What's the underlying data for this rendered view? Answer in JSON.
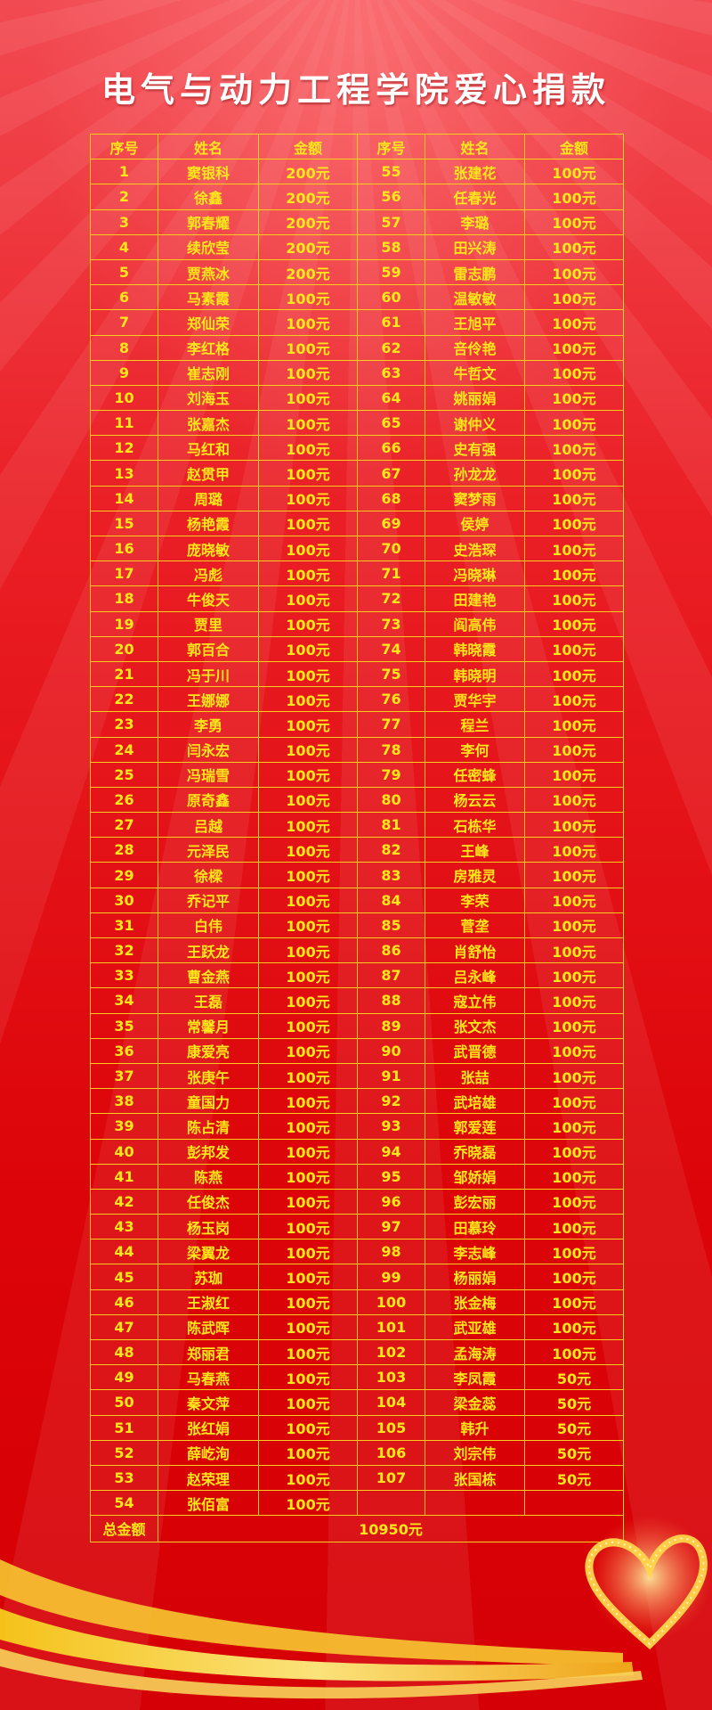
{
  "title": "电气与动力工程学院爱心捐款",
  "headers": [
    "序号",
    "姓名",
    "金额",
    "序号",
    "姓名",
    "金额"
  ],
  "left": [
    [
      "1",
      "窦银科",
      "200元"
    ],
    [
      "2",
      "徐鑫",
      "200元"
    ],
    [
      "3",
      "郭春耀",
      "200元"
    ],
    [
      "4",
      "续欣莹",
      "200元"
    ],
    [
      "5",
      "贾燕冰",
      "200元"
    ],
    [
      "6",
      "马素霞",
      "100元"
    ],
    [
      "7",
      "郑仙荣",
      "100元"
    ],
    [
      "8",
      "李红格",
      "100元"
    ],
    [
      "9",
      "崔志刚",
      "100元"
    ],
    [
      "10",
      "刘海玉",
      "100元"
    ],
    [
      "11",
      "张嘉杰",
      "100元"
    ],
    [
      "12",
      "马红和",
      "100元"
    ],
    [
      "13",
      "赵贯甲",
      "100元"
    ],
    [
      "14",
      "周璐",
      "100元"
    ],
    [
      "15",
      "杨艳霞",
      "100元"
    ],
    [
      "16",
      "庞晓敏",
      "100元"
    ],
    [
      "17",
      "冯彪",
      "100元"
    ],
    [
      "18",
      "牛俊天",
      "100元"
    ],
    [
      "19",
      "贾里",
      "100元"
    ],
    [
      "20",
      "郭百合",
      "100元"
    ],
    [
      "21",
      "冯于川",
      "100元"
    ],
    [
      "22",
      "王娜娜",
      "100元"
    ],
    [
      "23",
      "李勇",
      "100元"
    ],
    [
      "24",
      "闫永宏",
      "100元"
    ],
    [
      "25",
      "冯瑞雪",
      "100元"
    ],
    [
      "26",
      "原奇鑫",
      "100元"
    ],
    [
      "27",
      "吕越",
      "100元"
    ],
    [
      "28",
      "元泽民",
      "100元"
    ],
    [
      "29",
      "徐樑",
      "100元"
    ],
    [
      "30",
      "乔记平",
      "100元"
    ],
    [
      "31",
      "白伟",
      "100元"
    ],
    [
      "32",
      "王跃龙",
      "100元"
    ],
    [
      "33",
      "曹金燕",
      "100元"
    ],
    [
      "34",
      "王磊",
      "100元"
    ],
    [
      "35",
      "常馨月",
      "100元"
    ],
    [
      "36",
      "康爱亮",
      "100元"
    ],
    [
      "37",
      "张庚午",
      "100元"
    ],
    [
      "38",
      "童国力",
      "100元"
    ],
    [
      "39",
      "陈占清",
      "100元"
    ],
    [
      "40",
      "彭邦发",
      "100元"
    ],
    [
      "41",
      "陈燕",
      "100元"
    ],
    [
      "42",
      "任俊杰",
      "100元"
    ],
    [
      "43",
      "杨玉岗",
      "100元"
    ],
    [
      "44",
      "梁翼龙",
      "100元"
    ],
    [
      "45",
      "苏珈",
      "100元"
    ],
    [
      "46",
      "王淑红",
      "100元"
    ],
    [
      "47",
      "陈武晖",
      "100元"
    ],
    [
      "48",
      "郑丽君",
      "100元"
    ],
    [
      "49",
      "马春燕",
      "100元"
    ],
    [
      "50",
      "秦文萍",
      "100元"
    ],
    [
      "51",
      "张红娟",
      "100元"
    ],
    [
      "52",
      "薛屹洵",
      "100元"
    ],
    [
      "53",
      "赵荣理",
      "100元"
    ],
    [
      "54",
      "张佰富",
      "100元"
    ]
  ],
  "right": [
    [
      "55",
      "张建花",
      "100元"
    ],
    [
      "56",
      "任春光",
      "100元"
    ],
    [
      "57",
      "李璐",
      "100元"
    ],
    [
      "58",
      "田兴涛",
      "100元"
    ],
    [
      "59",
      "雷志鹏",
      "100元"
    ],
    [
      "60",
      "温敏敏",
      "100元"
    ],
    [
      "61",
      "王旭平",
      "100元"
    ],
    [
      "62",
      "咅伶艳",
      "100元"
    ],
    [
      "63",
      "牛哲文",
      "100元"
    ],
    [
      "64",
      "姚丽娟",
      "100元"
    ],
    [
      "65",
      "谢仲义",
      "100元"
    ],
    [
      "66",
      "史有强",
      "100元"
    ],
    [
      "67",
      "孙龙龙",
      "100元"
    ],
    [
      "68",
      "窦梦雨",
      "100元"
    ],
    [
      "69",
      "侯婷",
      "100元"
    ],
    [
      "70",
      "史浩琛",
      "100元"
    ],
    [
      "71",
      "冯晓琳",
      "100元"
    ],
    [
      "72",
      "田建艳",
      "100元"
    ],
    [
      "73",
      "阎高伟",
      "100元"
    ],
    [
      "74",
      "韩晓霞",
      "100元"
    ],
    [
      "75",
      "韩晓明",
      "100元"
    ],
    [
      "76",
      "贾华宇",
      "100元"
    ],
    [
      "77",
      "程兰",
      "100元"
    ],
    [
      "78",
      "李何",
      "100元"
    ],
    [
      "79",
      "任密蜂",
      "100元"
    ],
    [
      "80",
      "杨云云",
      "100元"
    ],
    [
      "81",
      "石栋华",
      "100元"
    ],
    [
      "82",
      "王峰",
      "100元"
    ],
    [
      "83",
      "房雅灵",
      "100元"
    ],
    [
      "84",
      "李荣",
      "100元"
    ],
    [
      "85",
      "菅垄",
      "100元"
    ],
    [
      "86",
      "肖舒怡",
      "100元"
    ],
    [
      "87",
      "吕永峰",
      "100元"
    ],
    [
      "88",
      "寇立伟",
      "100元"
    ],
    [
      "89",
      "张文杰",
      "100元"
    ],
    [
      "90",
      "武晋德",
      "100元"
    ],
    [
      "91",
      "张喆",
      "100元"
    ],
    [
      "92",
      "武培雄",
      "100元"
    ],
    [
      "93",
      "郭爱莲",
      "100元"
    ],
    [
      "94",
      "乔晓磊",
      "100元"
    ],
    [
      "95",
      "邹娇娟",
      "100元"
    ],
    [
      "96",
      "彭宏丽",
      "100元"
    ],
    [
      "97",
      "田慕玲",
      "100元"
    ],
    [
      "98",
      "李志峰",
      "100元"
    ],
    [
      "99",
      "杨丽娟",
      "100元"
    ],
    [
      "100",
      "张金梅",
      "100元"
    ],
    [
      "101",
      "武亚雄",
      "100元"
    ],
    [
      "102",
      "孟海涛",
      "100元"
    ],
    [
      "103",
      "李凤霞",
      "50元"
    ],
    [
      "104",
      "梁金蕊",
      "50元"
    ],
    [
      "105",
      "韩升",
      "50元"
    ],
    [
      "106",
      "刘宗伟",
      "50元"
    ],
    [
      "107",
      "张国栋",
      "50元"
    ]
  ],
  "total": {
    "label": "总金额",
    "value": "10950元"
  },
  "colors": {
    "background": "#e30a0c",
    "text": "#ffe81a",
    "border": "#f2cf1a",
    "title": "#ffffff"
  }
}
